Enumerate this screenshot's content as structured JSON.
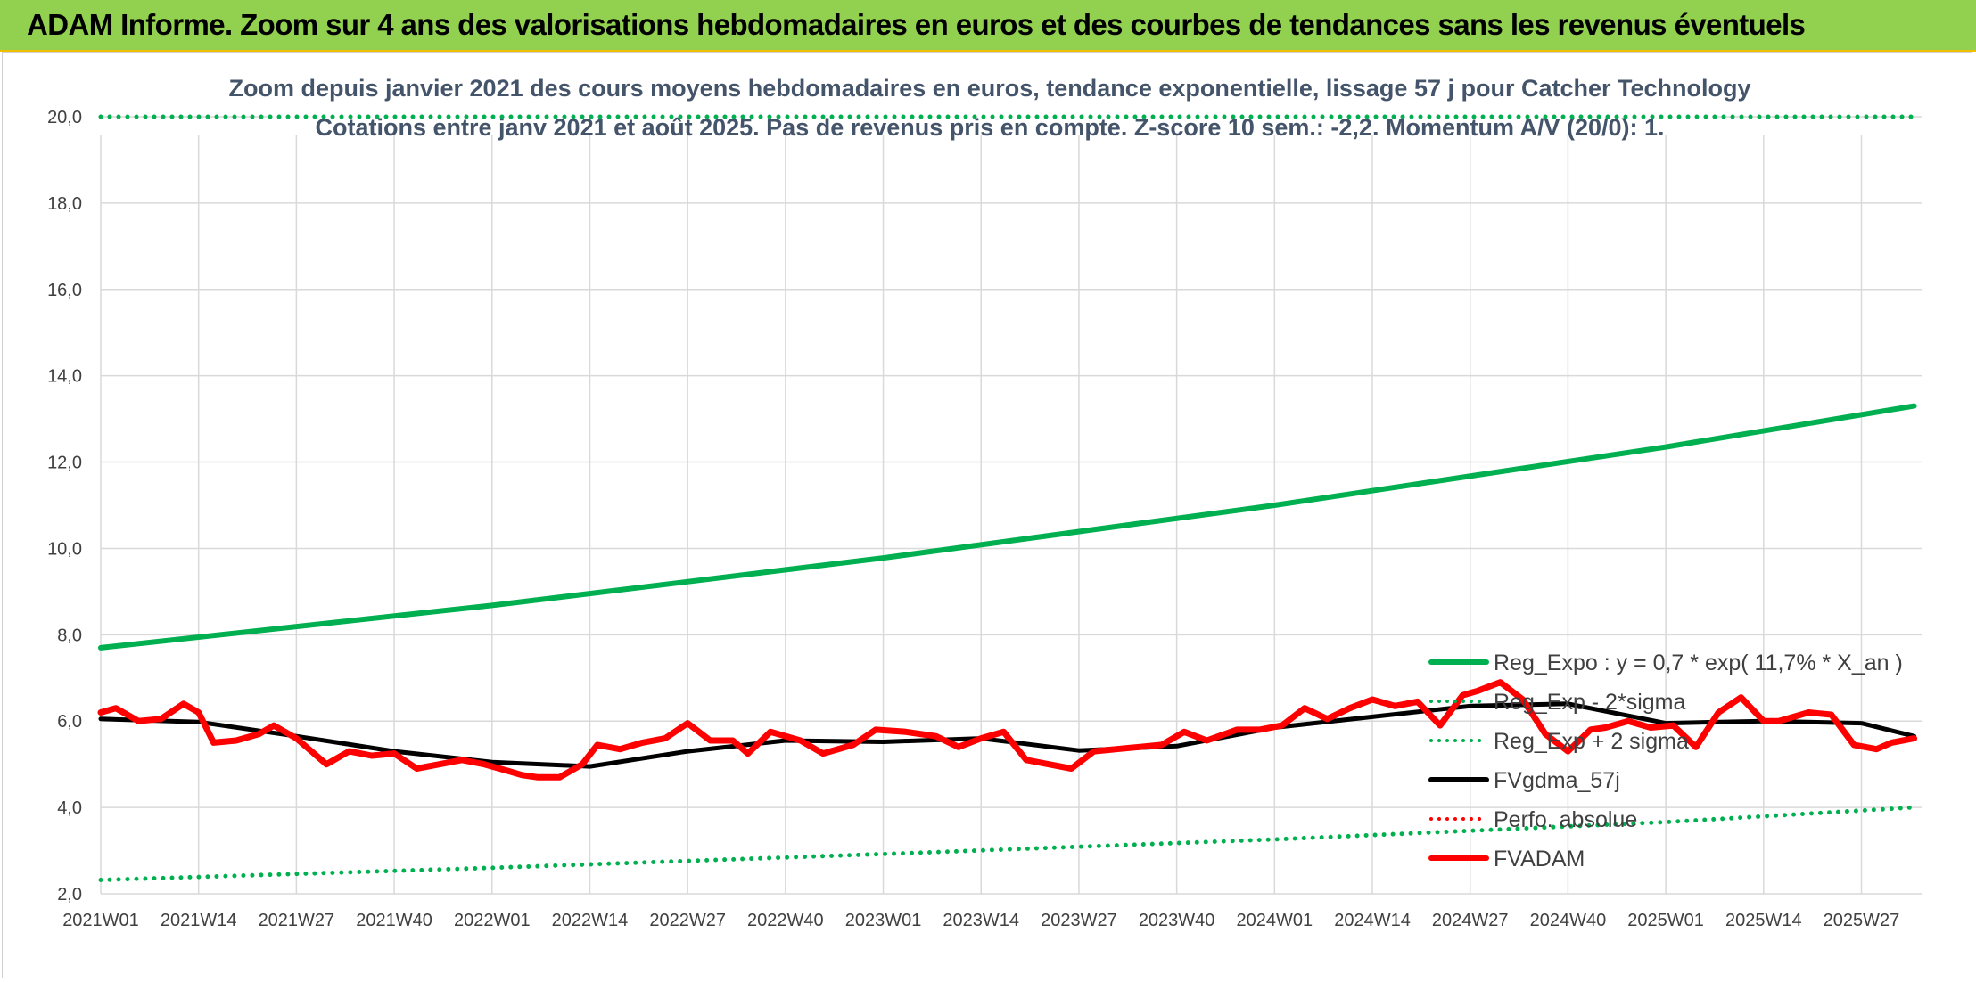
{
  "banner": {
    "title": "ADAM Informe. Zoom sur 4 ans des valorisations hebdomadaires en euros et des courbes de tendances sans les revenus éventuels",
    "bg_color": "#92d050"
  },
  "chart_data": {
    "type": "line",
    "title_line1": "Zoom depuis janvier 2021 des cours moyens hebdomadaires en euros, tendance exponentielle, lissage 57 j pour Catcher Technology",
    "title_line2": "Cotations entre janv 2021 et août 2025. Pas de revenus pris en compte. Z-score 10 sem.: -2,2. Momentum A/V (20/0): 1.",
    "ylim": [
      2.0,
      20.0
    ],
    "y_ticks": [
      "2,0",
      "4,0",
      "6,0",
      "8,0",
      "10,0",
      "12,0",
      "14,0",
      "16,0",
      "18,0",
      "20,0"
    ],
    "x_ticks": [
      "2021W01",
      "2021W14",
      "2021W27",
      "2021W40",
      "2022W01",
      "2022W14",
      "2022W27",
      "2022W40",
      "2023W01",
      "2023W14",
      "2023W27",
      "2023W40",
      "2024W01",
      "2024W14",
      "2024W27",
      "2024W40",
      "2025W01",
      "2025W14",
      "2025W27"
    ],
    "n_weeks": 243,
    "grid": true,
    "legend_position": "right",
    "series": [
      {
        "name": "Reg_Expo : y = 0,7 * exp( 11,7% *  X_an )",
        "color": "#00b050",
        "style": "solid",
        "x": [
          "2021W01",
          "2022W01",
          "2023W01",
          "2024W01",
          "2025W01",
          "2025W34"
        ],
        "values": [
          7.7,
          8.68,
          9.78,
          11.0,
          12.35,
          13.3
        ]
      },
      {
        "name": "Reg_Exp - 2*sigma",
        "color": "#00b050",
        "style": "dotted",
        "x": [
          "2021W01",
          "2022W01",
          "2023W01",
          "2024W01",
          "2025W01",
          "2025W34"
        ],
        "values": [
          2.32,
          2.6,
          2.92,
          3.26,
          3.66,
          4.0
        ]
      },
      {
        "name": "Reg_Exp + 2 sigma",
        "color": "#00b050",
        "style": "dotted",
        "x": [
          "2021W01",
          "2025W34"
        ],
        "values": [
          20.0,
          20.0
        ]
      },
      {
        "name": "FVgdma_57j",
        "color": "#000000",
        "style": "solid",
        "x": [
          "2021W01",
          "2021W14",
          "2021W27",
          "2021W40",
          "2022W01",
          "2022W14",
          "2022W27",
          "2022W40",
          "2023W01",
          "2023W14",
          "2023W27",
          "2023W40",
          "2024W01",
          "2024W14",
          "2024W27",
          "2024W40",
          "2025W01",
          "2025W14",
          "2025W27",
          "2025W34"
        ],
        "values": [
          6.05,
          5.98,
          5.65,
          5.3,
          5.05,
          4.95,
          5.3,
          5.55,
          5.52,
          5.6,
          5.32,
          5.42,
          5.85,
          6.1,
          6.35,
          6.4,
          5.95,
          6.0,
          5.95,
          5.65
        ]
      },
      {
        "name": "Perfo. absolue",
        "color": "#ff0000",
        "style": "dotted",
        "x": [],
        "values": []
      },
      {
        "name": "FVADAM",
        "color": "#ff0000",
        "style": "solid",
        "x": [
          "2021W01",
          "2021W03",
          "2021W06",
          "2021W09",
          "2021W12",
          "2021W14",
          "2021W16",
          "2021W19",
          "2021W22",
          "2021W24",
          "2021W27",
          "2021W29",
          "2021W31",
          "2021W34",
          "2021W37",
          "2021W40",
          "2021W43",
          "2021W46",
          "2021W49",
          "2021W52",
          "2022W03",
          "2022W05",
          "2022W07",
          "2022W10",
          "2022W13",
          "2022W15",
          "2022W18",
          "2022W21",
          "2022W24",
          "2022W27",
          "2022W30",
          "2022W33",
          "2022W35",
          "2022W38",
          "2022W42",
          "2022W45",
          "2022W49",
          "2022W52",
          "2023W04",
          "2023W08",
          "2023W11",
          "2023W14",
          "2023W17",
          "2023W20",
          "2023W23",
          "2023W26",
          "2023W29",
          "2023W32",
          "2023W35",
          "2023W38",
          "2023W41",
          "2023W44",
          "2023W48",
          "2023W51",
          "2024W02",
          "2024W05",
          "2024W08",
          "2024W11",
          "2024W14",
          "2024W17",
          "2024W20",
          "2024W23",
          "2024W26",
          "2024W28",
          "2024W31",
          "2024W34",
          "2024W37",
          "2024W40",
          "2024W43",
          "2024W45",
          "2024W48",
          "2024W51",
          "2025W02",
          "2025W05",
          "2025W08",
          "2025W11",
          "2025W14",
          "2025W16",
          "2025W18",
          "2025W20",
          "2025W23",
          "2025W26",
          "2025W29",
          "2025W31",
          "2025W34"
        ],
        "values": [
          6.2,
          6.3,
          6.0,
          6.05,
          6.4,
          6.2,
          5.5,
          5.55,
          5.7,
          5.9,
          5.6,
          5.3,
          5.0,
          5.3,
          5.2,
          5.25,
          4.9,
          5.0,
          5.1,
          5.0,
          4.85,
          4.75,
          4.7,
          4.7,
          5.0,
          5.45,
          5.35,
          5.5,
          5.6,
          5.95,
          5.55,
          5.55,
          5.25,
          5.75,
          5.55,
          5.25,
          5.45,
          5.8,
          5.75,
          5.65,
          5.4,
          5.6,
          5.75,
          5.1,
          5.0,
          4.9,
          5.3,
          5.35,
          5.4,
          5.45,
          5.75,
          5.55,
          5.8,
          5.8,
          5.9,
          6.3,
          6.05,
          6.3,
          6.5,
          6.35,
          6.45,
          5.9,
          6.6,
          6.7,
          6.9,
          6.5,
          5.7,
          5.3,
          5.8,
          5.85,
          6.0,
          5.85,
          5.9,
          5.4,
          6.2,
          6.55,
          6.0,
          6.0,
          6.1,
          6.2,
          6.15,
          5.45,
          5.35,
          5.5,
          5.6
        ]
      }
    ]
  }
}
